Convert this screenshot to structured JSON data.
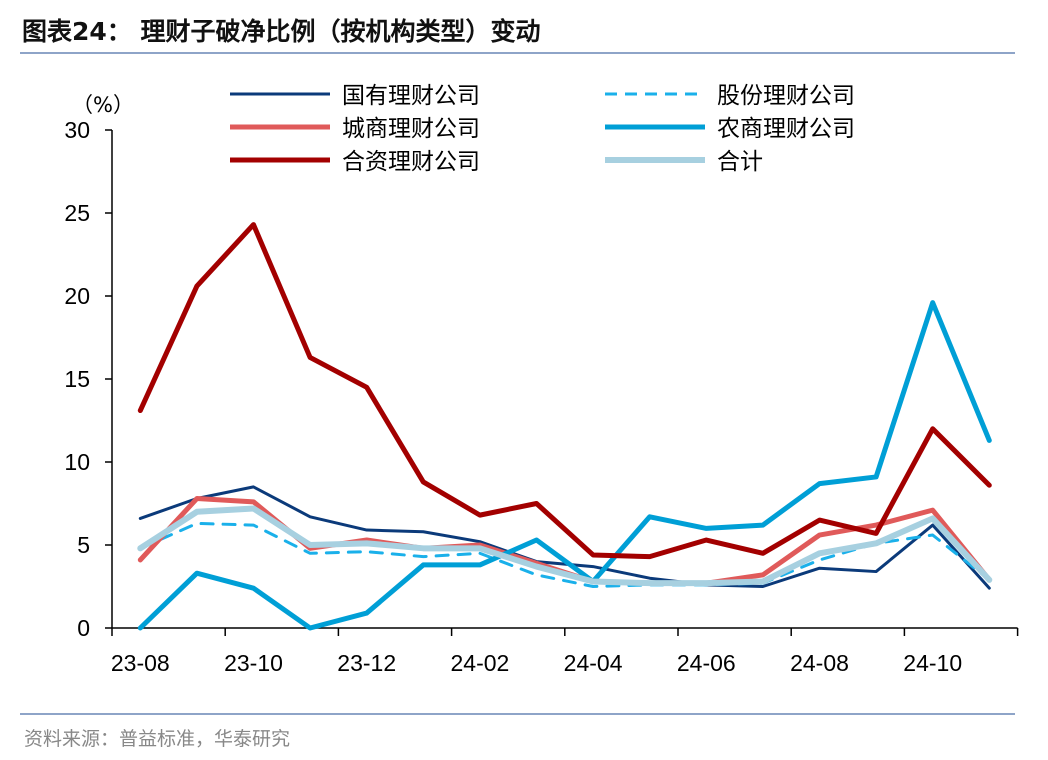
{
  "title": "图表24：  理财子破净比例（按机构类型）变动",
  "source": "资料来源：普益标准，华泰研究",
  "chart_data": {
    "type": "line",
    "title": "图表24：  理财子破净比例（按机构类型）变动",
    "ylabel": "（%）",
    "ylim": [
      0,
      30
    ],
    "yticks": [
      0,
      5,
      10,
      15,
      20,
      25,
      30
    ],
    "categories": [
      "23-08",
      "23-09",
      "23-10",
      "23-11",
      "23-12",
      "24-01",
      "24-02",
      "24-03",
      "24-04",
      "24-05",
      "24-06",
      "24-07",
      "24-08",
      "24-09",
      "24-10",
      "24-11"
    ],
    "xtick_labels": [
      "23-08",
      "23-10",
      "23-12",
      "24-02",
      "24-04",
      "24-06",
      "24-08",
      "24-10"
    ],
    "legend": "top",
    "grid": false,
    "series": [
      {
        "name": "国有理财公司",
        "color": "#0b3a7a",
        "width": 3,
        "dash": false,
        "values": [
          6.6,
          7.8,
          8.5,
          6.7,
          5.9,
          5.8,
          5.2,
          4.0,
          3.7,
          3.0,
          2.6,
          2.5,
          3.6,
          3.4,
          6.2,
          2.4
        ]
      },
      {
        "name": "股份理财公司",
        "color": "#1ab0ea",
        "width": 3,
        "dash": true,
        "values": [
          4.8,
          6.3,
          6.2,
          4.5,
          4.6,
          4.3,
          4.5,
          3.2,
          2.5,
          2.6,
          2.6,
          2.7,
          4.1,
          5.1,
          5.6,
          2.9
        ]
      },
      {
        "name": "城商理财公司",
        "color": "#e05a5a",
        "width": 5,
        "dash": false,
        "values": [
          4.1,
          7.8,
          7.6,
          4.8,
          5.3,
          4.8,
          5.0,
          3.9,
          2.8,
          2.7,
          2.7,
          3.2,
          5.6,
          6.2,
          7.1,
          2.9
        ]
      },
      {
        "name": "农商理财公司",
        "color": "#009fd6",
        "width": 5,
        "dash": false,
        "values": [
          0,
          3.3,
          2.4,
          0,
          0.9,
          3.8,
          3.8,
          5.3,
          2.8,
          6.7,
          6.0,
          6.2,
          8.7,
          9.1,
          19.6,
          11.3
        ]
      },
      {
        "name": "合资理财公司",
        "color": "#a30000",
        "width": 5,
        "dash": false,
        "values": [
          13.1,
          20.6,
          24.3,
          16.3,
          14.5,
          8.8,
          6.8,
          7.5,
          4.4,
          4.3,
          5.3,
          4.5,
          6.5,
          5.7,
          12.0,
          8.6
        ]
      },
      {
        "name": "合计",
        "color": "#a7d0e0",
        "width": 6,
        "dash": false,
        "values": [
          4.8,
          7.0,
          7.2,
          5.0,
          5.1,
          4.8,
          4.8,
          3.7,
          2.8,
          2.7,
          2.7,
          2.8,
          4.5,
          5.1,
          6.6,
          2.9
        ]
      }
    ]
  }
}
